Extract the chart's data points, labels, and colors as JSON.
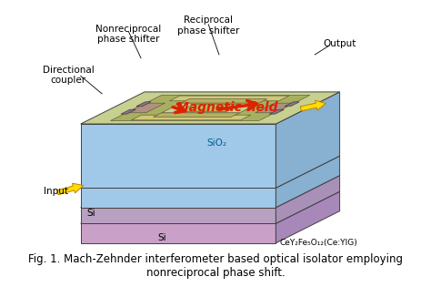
{
  "title": "Fig. 1. Mach-Zehnder interferometer based optical isolator employing\nnonreciprocal phase shift.",
  "title_fontsize": 9,
  "fig_width": 4.74,
  "fig_height": 3.15,
  "bg_color": "#ffffff",
  "labels": {
    "nonreciprocal": "Nonreciprocal\nphase shifter",
    "reciprocal": "Reciprocal\nphase shifter",
    "directional": "Directional\ncoupler",
    "output": "Output",
    "input": "Input",
    "magnetic": "Magnetic field",
    "sio2": "SiO₂",
    "si_left": "Si",
    "si_bottom": "Si",
    "cey": "CeY₂Fe₅O₁₂(Ce:YIG)"
  },
  "colors": {
    "yig_layer": "#c8a0c8",
    "si_layer": "#b8a0c0",
    "sio2_layer": "#a0c8e8",
    "sio2_top": "#b8d8f0",
    "waveguide_layer": "#c8d090",
    "waveguide_dark": "#a8b060",
    "coupler": "#b09080",
    "yellow_arrow": "#ffdd00",
    "red_arrow": "#dd2200",
    "magnetic_text": "#dd2200",
    "label_color": "#000000",
    "outline": "#404040"
  }
}
